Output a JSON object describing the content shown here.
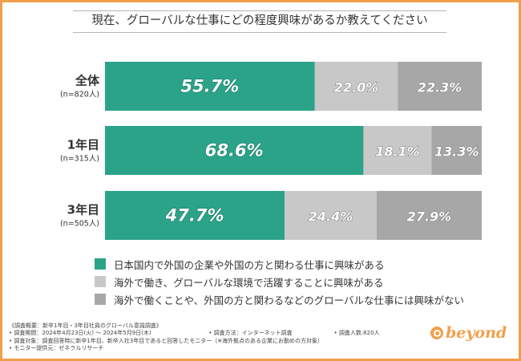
{
  "chart_data": {
    "type": "bar",
    "orientation": "horizontal",
    "stacked": true,
    "title": "現在、グローバルな仕事にどの程度興味があるか教えてください",
    "categories": [
      "全体",
      "1年目",
      "3年目"
    ],
    "category_notes": [
      "(n=820人)",
      "(n=315人)",
      "(n=505人)"
    ],
    "series": [
      {
        "name": "日本国内で外国の企業や外国の方と関わる仕事に興味がある",
        "color": "#2aa389",
        "values": [
          55.7,
          68.6,
          47.7
        ]
      },
      {
        "name": "海外で働き、グローバルな環境で活躍することに興味がある",
        "color": "#c8c8c8",
        "values": [
          22.0,
          18.1,
          24.4
        ]
      },
      {
        "name": "海外で働くことや、外国の方と関わるなどのグローバルな仕事には興味がない",
        "color": "#a7a7a7",
        "values": [
          22.3,
          13.3,
          27.9
        ]
      }
    ],
    "value_labels": [
      [
        "55.7%",
        "22.0%",
        "22.3%"
      ],
      [
        "68.6%",
        "18.1%",
        "13.3%"
      ],
      [
        "47.7%",
        "24.4%",
        "27.9%"
      ]
    ],
    "xlim": [
      0,
      100
    ],
    "legend_position": "bottom",
    "xlabel": "",
    "ylabel": ""
  },
  "notes": {
    "overview": "《調査概要：新卒1年目・3年目社員のグローバル意識調査》",
    "period": "• 調査期間：2024年4月23日(火) ～ 2024年5月9日(木)",
    "method": "• 調査方法：インターネット調査",
    "count": "• 調査人数:820人",
    "target": "• 調査対象：調査回答時に新卒1年目、新卒入社3年目であると回答したモニター（※海外拠点のある企業にお勤めの方対象）",
    "provider": "• モニター提供元：ゼネラルリサーチ"
  },
  "brand": {
    "name": "beyond",
    "color": "#f0a04b"
  }
}
